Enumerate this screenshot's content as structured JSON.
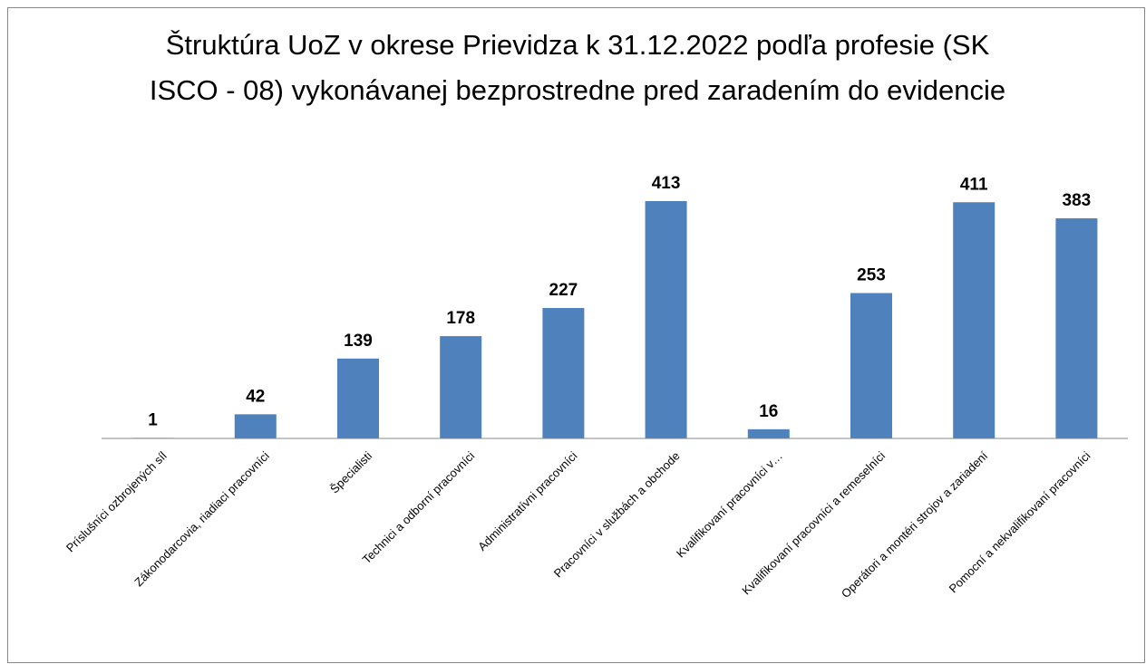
{
  "chart_data": {
    "type": "bar",
    "title": "Štruktúra UoZ v okrese Prievidza k 31.12.2022 podľa profesie (SK ISCO - 08) vykonávanej bezprostredne pred zaradením do evidencie",
    "categories": [
      "Príslušníci ozbrojených síl",
      "Zákonodarcovia, riadiaci pracovníci",
      "Špecialisti",
      "Technici a odborní pracovníci",
      "Administratívni pracovníci",
      "Pracovníci v službách a obchode",
      "Kvalifikovaní pracovníci v…",
      "Kvalifikovaní pracovníci a remeselníci",
      "Operátori a montéri strojov a zariadení",
      "Pomocní a nekvalifikovaní pracovníci"
    ],
    "values": [
      1,
      42,
      139,
      178,
      227,
      413,
      16,
      253,
      411,
      383
    ],
    "color": "#4f81bd"
  }
}
